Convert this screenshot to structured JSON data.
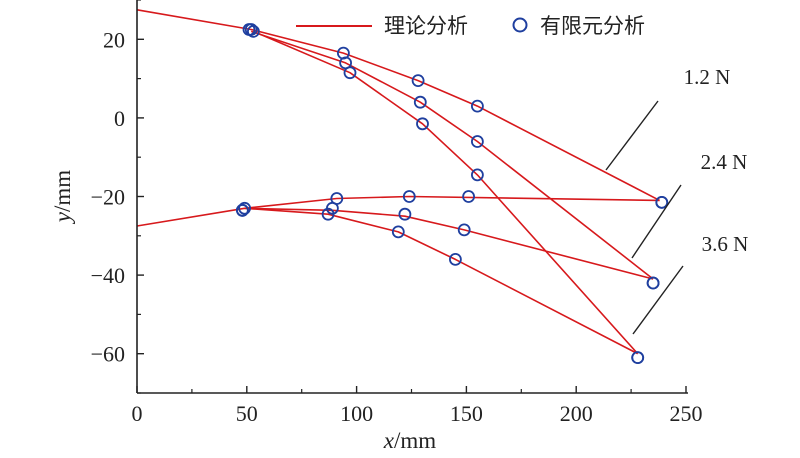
{
  "chart_data": {
    "type": "line",
    "xlabel_var": "x",
    "xlabel_unit": "/mm",
    "ylabel_var": "y",
    "ylabel_unit": "/mm",
    "xlim": [
      0,
      250
    ],
    "ylim": [
      -70,
      30
    ],
    "x_ticks": [
      0,
      50,
      100,
      150,
      200,
      250
    ],
    "y_ticks": [
      20,
      0,
      -20,
      -40,
      -60
    ],
    "y_tick_labels": [
      "20",
      "0",
      "−20",
      "−40",
      "−60"
    ],
    "legend": {
      "position": "top",
      "theory_label": "理论分析",
      "fem_label": "有限元分析",
      "theory_color": "#d7191c",
      "fem_color": "#1f3f9f"
    },
    "series": [
      {
        "name": "1.2 N",
        "theory": [
          [
            0,
            27.5
          ],
          [
            52,
            22.5
          ],
          [
            94,
            16.5
          ],
          [
            128,
            9.5
          ],
          [
            155,
            3
          ],
          [
            238,
            -21
          ]
        ],
        "fem": [
          [
            51,
            22.5
          ],
          [
            94,
            16.5
          ],
          [
            128,
            9.5
          ],
          [
            155,
            3
          ],
          [
            239,
            -21.5
          ]
        ]
      },
      {
        "name": "2.4 N",
        "theory": [
          [
            52,
            22
          ],
          [
            95,
            14
          ],
          [
            129,
            4
          ],
          [
            155,
            -6
          ],
          [
            235,
            -41
          ]
        ],
        "fem": [
          [
            52,
            22.5
          ],
          [
            95,
            14
          ],
          [
            129,
            4
          ],
          [
            155,
            -6
          ],
          [
            235,
            -42
          ]
        ]
      },
      {
        "name": "3.6 N",
        "theory": [
          [
            53,
            22
          ],
          [
            97,
            11.5
          ],
          [
            130,
            -1.5
          ],
          [
            155,
            -14.5
          ],
          [
            228,
            -60
          ]
        ],
        "fem": [
          [
            53,
            22
          ],
          [
            97,
            11.5
          ],
          [
            130,
            -1.5
          ],
          [
            155,
            -14.5
          ],
          [
            228,
            -61
          ]
        ]
      },
      {
        "name": "1.2 N",
        "theory": [
          [
            0,
            -27.5
          ],
          [
            49,
            -23
          ],
          [
            91,
            -20.5
          ],
          [
            124,
            -20
          ],
          [
            238,
            -21
          ]
        ],
        "fem": [
          [
            48,
            -23.5
          ],
          [
            91,
            -20.5
          ],
          [
            124,
            -20
          ],
          [
            151,
            -20
          ],
          [
            239,
            -21.5
          ]
        ]
      },
      {
        "name": "2.4 N",
        "theory": [
          [
            49,
            -23
          ],
          [
            89,
            -23.5
          ],
          [
            122,
            -25
          ],
          [
            149,
            -28.5
          ],
          [
            235,
            -41
          ]
        ],
        "fem": [
          [
            49,
            -23
          ],
          [
            89,
            -23
          ],
          [
            122,
            -24.5
          ],
          [
            149,
            -28.5
          ],
          [
            235,
            -42
          ]
        ]
      },
      {
        "name": "3.6 N",
        "theory": [
          [
            49,
            -23
          ],
          [
            87,
            -24.5
          ],
          [
            119,
            -29
          ],
          [
            145,
            -36
          ],
          [
            228,
            -60
          ]
        ],
        "fem": [
          [
            48,
            -23.5
          ],
          [
            87,
            -24.5
          ],
          [
            119,
            -29
          ],
          [
            145,
            -36
          ],
          [
            228,
            -61
          ]
        ]
      }
    ],
    "annotations": [
      {
        "text": "1.2 N",
        "leader_from": [
          215,
          -13
        ],
        "leader_to": [
          195,
          -13.2
        ],
        "label_at": [
          243,
          10.5
        ]
      },
      {
        "text": "2.4 N",
        "leader_from": [
          211,
          -32
        ],
        "leader_to": [
          195,
          -34.5
        ],
        "label_at": [
          247,
          -12
        ]
      },
      {
        "text": "3.6 N",
        "leader_from": [
          208,
          -52
        ],
        "leader_to": [
          195,
          -55
        ],
        "label_at": [
          245,
          -32
        ]
      }
    ]
  }
}
